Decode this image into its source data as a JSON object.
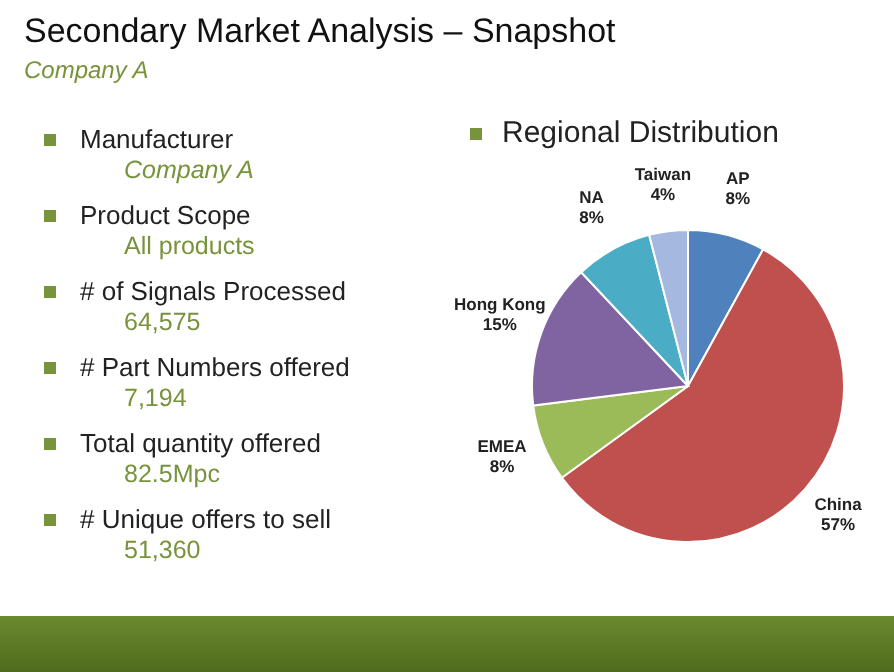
{
  "chart_data": [
    {
      "type": "other",
      "title": "Secondary Market Analysis – Snapshot",
      "subtitle": "Company A",
      "annotations": [
        "Manufacturer",
        "Company A",
        "Product Scope",
        "All products",
        "# of Signals Processed",
        "64,575",
        "# Part Numbers offered",
        "7,194",
        "Total quantity offered",
        "82.5Mpc",
        "# Unique offers to sell",
        "51,360"
      ]
    },
    {
      "type": "pie",
      "title": "Regional Distribution",
      "categories": [
        "AP",
        "China",
        "EMEA",
        "Hong Kong",
        "NA",
        "Taiwan"
      ],
      "values": [
        8,
        57,
        8,
        15,
        8,
        4
      ],
      "colors": [
        "#4f81bd",
        "#c0504d",
        "#9bbb59",
        "#8064a2",
        "#4bacc6",
        "#a5b8e0"
      ],
      "value_labels": [
        "8%",
        "57%",
        "8%",
        "15%",
        "8%",
        "4%"
      ]
    }
  ]
}
